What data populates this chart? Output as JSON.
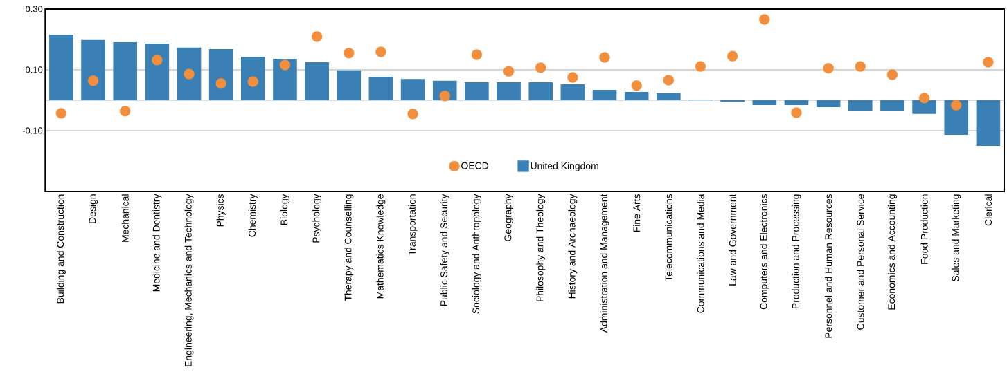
{
  "chart_data": {
    "type": "bar",
    "categories": [
      "Building and Construction",
      "Design",
      "Mechanical",
      "Medicine and Dentistry",
      "Engineering, Mechanics and Technology",
      "Physics",
      "Chemistry",
      "Biology",
      "Psychology",
      "Therapy and Counselling",
      "Mathematics Knowledge",
      "Transportation",
      "Public Safety and Security",
      "Sociology and Anthropology",
      "Geography",
      "Philosophy and Theology",
      "History and Archaeology",
      "Administration and Management",
      "Fine Arts",
      "Telecommunications",
      "Communications and Media",
      "Law and Government",
      "Computers and Electronics",
      "Production and Processing",
      "Personnel and Human Resources",
      "Customer and Personal Service",
      "Economics and Accounting",
      "Food Production",
      "Sales and Marketing",
      "Clerical"
    ],
    "series": [
      {
        "name": "OECD",
        "type": "scatter",
        "color": "#f28e3c",
        "values": [
          -0.043,
          0.064,
          -0.036,
          0.132,
          0.086,
          0.055,
          0.061,
          0.116,
          0.209,
          0.155,
          0.159,
          -0.045,
          0.014,
          0.15,
          0.095,
          0.107,
          0.075,
          0.141,
          0.048,
          0.066,
          0.111,
          0.145,
          0.266,
          -0.041,
          0.105,
          0.111,
          0.084,
          0.007,
          -0.016,
          0.125
        ]
      },
      {
        "name": "United Kingdom",
        "color": "#3a80b5",
        "values": [
          0.216,
          0.198,
          0.191,
          0.186,
          0.173,
          0.168,
          0.143,
          0.136,
          0.125,
          0.098,
          0.077,
          0.07,
          0.064,
          0.059,
          0.059,
          0.059,
          0.052,
          0.034,
          0.027,
          0.023,
          0.002,
          -0.005,
          -0.016,
          -0.016,
          -0.023,
          -0.034,
          -0.034,
          -0.045,
          -0.114,
          -0.15
        ]
      }
    ],
    "ylim": [
      -0.3,
      0.3
    ],
    "yticks": [
      {
        "value": 0.3,
        "label": "0.30"
      },
      {
        "value": 0.1,
        "label": "0.10"
      },
      {
        "value": 0,
        "label": null
      },
      {
        "value": -0.1,
        "label": "-0.10"
      }
    ],
    "grid": "y",
    "legend": "bottom"
  }
}
